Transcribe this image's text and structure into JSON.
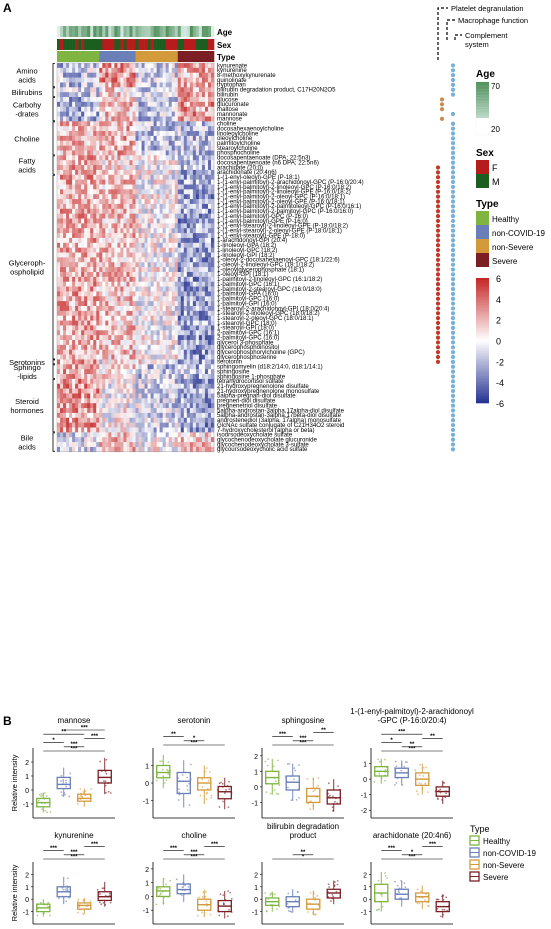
{
  "panel_labels": {
    "a": "A",
    "b": "B"
  },
  "annotation_tracks": [
    "Age",
    "Sex",
    "Type"
  ],
  "pathways": [
    "Platelet degranulation",
    "Macrophage function",
    "Complement system"
  ],
  "pathway_colors": [
    "#77b0d8",
    "#cc8a52",
    "#c0392b"
  ],
  "colors": {
    "heat_high": "#c62828",
    "heat_mid": "#ffffff",
    "heat_low": "#283593",
    "age_high": "#4e8f5a",
    "age_low": "#dcefe9",
    "sex_F": "#b71c1c",
    "sex_M": "#1b5e20",
    "Healthy": "#7fb441",
    "non-COVID-19": "#6a7fb8",
    "non-Severe": "#d29a3a",
    "Severe": "#7b1f24"
  },
  "legend": {
    "age_title": "Age",
    "age_max": "70",
    "age_min": "20",
    "sex_title": "Sex",
    "sex": [
      "F",
      "M"
    ],
    "type_title": "Type",
    "types": [
      "Healthy",
      "non-COVID-19",
      "non-Severe",
      "Severe"
    ],
    "scale_ticks": [
      "6",
      "4",
      "2",
      "0",
      "-2",
      "-4",
      "-6"
    ]
  },
  "groups": [
    {
      "label": "Amino\nacids",
      "rows": [
        "kynurenate",
        "kynurenine",
        "8-methoxykynurenate",
        "quinolinate",
        "tryptophan"
      ],
      "marks": [
        [
          0
        ],
        [
          0
        ],
        [
          0
        ],
        [
          0
        ],
        [
          0
        ]
      ]
    },
    {
      "label": "Bilirubins",
      "rows": [
        "bilirubin degradation product, C17H20N2O5",
        "bilirubin"
      ],
      "marks": [
        [
          0
        ],
        [
          0
        ]
      ]
    },
    {
      "label": "Carbohy\n-drates",
      "rows": [
        "glucose",
        "glucuronate",
        "maltose",
        "mannonate",
        "mannose"
      ],
      "marks": [
        [
          1
        ],
        [
          1
        ],
        [
          1
        ],
        [
          0
        ],
        [
          1
        ]
      ]
    },
    {
      "label": "Choline",
      "rows": [
        "choline",
        "docosahexaenoylcholine",
        "linoleoylcholine",
        "oleoylcholine",
        "palmitoylcholine",
        "stearoylcholine",
        "phosphocholine"
      ],
      "marks": [
        [
          0
        ],
        [
          0
        ],
        [
          0
        ],
        [
          0
        ],
        [
          0
        ],
        [
          0
        ],
        [
          0
        ]
      ]
    },
    {
      "label": "Fatty\nacids",
      "rows": [
        "docosapentaenoate (DPA; 22:5n3)",
        "docosapentaenoate (n6 DPA; 22:5n6)",
        "arachidate (20:0)",
        "arachidonate (20:4n6)"
      ],
      "marks": [
        [
          0
        ],
        [
          0
        ],
        [
          2,
          0
        ],
        [
          2,
          0
        ]
      ]
    },
    {
      "label": "Glyceroph-\nospholipid",
      "rows": [
        "1-(1-enyl-oleoyl)-GPE (P-18:1)",
        "1-(1-enyl-palmitoyl)-2-arachidonoyl-GPC (P-16:0/20:4)",
        "1-(1-enyl-palmitoyl)-2-linoleoyl-GPC (P-16:0/18:2)",
        "1-(1-enyl-palmitoyl)-2-linoleoyl-GPE (P-16:0/18:2)",
        "1-(1-enyl-palmitoyl)-2-oleoyl-GPC (P-16:0/18:1)",
        "1-(1-enyl-palmitoyl)-2-oleoyl-GPE (P-16:0/18:1)",
        "1-(1-enyl-palmitoyl)-2-palmitoleoyl-GPC (P-16:0/16:1)",
        "1-(1-enyl-palmitoyl)-2-palmitoyl-GPC (P-16:0/16:0)",
        "1-(1-enyl-palmitoyl)-GPC (P-16:0)",
        "1-(1-enyl-palmitoyl)-GPE (P-16:0)",
        "1-(1-enyl-stearoyl)-2-linoleoyl-GPE (P-18:0/18:2)",
        "1-(1-enyl-stearoyl)-2-oleoyl-GPE (P-18:0/18:1)",
        "1-(1-enyl-stearoyl)-GPE (P-18:0)",
        "1-arachidonoyl-GPI (20:4)",
        "1-linoleoyl-GPA (18:2)",
        "1-linoleoyl-GPC (18:2)",
        "1-linoleoyl-GPI (18:2)",
        "1-oleoyl-2-docosahexaenoyl-GPC (18:1/22:6)",
        "1-oleoyl-2-linoleoyl-GPC (18:1/18:2)",
        "1-oleoylglycerophosphate (18:1)",
        "1-oleoyl-GPI (18:1)",
        "1-palmitoyl-2-linoleoyl-GPC (16:1/18:2)",
        "1-palmitoyl-GPC (16:1)",
        "1-palmitoyl-2-stearoyl-GPC (16:0/18:0)",
        "1-palmitoyl-GPA (16:0)",
        "1-palmitoyl-GPC (16:0)",
        "1-palmitoyl-GPI (16:0)",
        "1-stearoyl-2-arachidonoyl-GPI (18:0/20:4)",
        "1-stearoyl-2-linoleoyl-GPC (18:0/18:2)",
        "1-stearoyl-2-oleoyl-GPC (18:0/18:1)",
        "1-stearoyl-GPC (18:0)",
        "1-stearoyl-GPI (18:0)",
        "2-palmitoyl-GPC (16:1)",
        "2-palmitoyl-GPC (16:0)",
        "glycerol 3-phosphate",
        "glycerophosphoinositol",
        "glycerophosphorylcholine (GPC)",
        "glycerophosphoserine"
      ],
      "marks": [
        [
          2,
          0
        ],
        [
          2,
          0
        ],
        [
          2,
          0
        ],
        [
          2,
          0
        ],
        [
          2,
          0
        ],
        [
          2,
          0
        ],
        [
          2,
          0
        ],
        [
          2,
          0
        ],
        [
          2,
          0
        ],
        [
          2,
          0
        ],
        [
          2,
          0
        ],
        [
          2,
          0
        ],
        [
          2,
          0
        ],
        [
          2,
          0
        ],
        [
          2,
          0
        ],
        [
          2,
          0
        ],
        [
          2,
          0
        ],
        [
          2,
          0
        ],
        [
          2,
          0
        ],
        [
          2,
          0
        ],
        [
          2,
          0
        ],
        [
          2,
          0
        ],
        [
          2,
          0
        ],
        [
          2,
          0
        ],
        [
          2,
          0
        ],
        [
          2,
          0
        ],
        [
          2,
          0
        ],
        [
          2,
          0
        ],
        [
          2,
          0
        ],
        [
          2,
          0
        ],
        [
          2,
          0
        ],
        [
          2,
          0
        ],
        [
          2,
          0
        ],
        [
          2,
          0
        ],
        [
          2,
          0
        ],
        [
          2,
          0
        ],
        [
          2,
          0
        ],
        [
          2,
          0
        ]
      ]
    },
    {
      "label": "Serotonins",
      "rows": [
        "serotonin"
      ],
      "marks": [
        [
          2,
          0
        ]
      ]
    },
    {
      "label": "Sphingo\n-lipids",
      "rows": [
        "sphingomyelin (d18:2/14:0, d18:1/14:1)",
        "sphingosine",
        "sphingosine 1-phosphate"
      ],
      "marks": [
        [
          0
        ],
        [
          0
        ],
        [
          0
        ]
      ]
    },
    {
      "label": "Steroid\nhormones",
      "rows": [
        "tetrahydrocortisol sulfate",
        "21-hydroxypregnenolone disulfate",
        "21-hydroxypregnenolone monosulfate",
        "5alpha-pregnan-diol disulfate",
        "pregnen-diol disulfate",
        "pregnenetriol disulfate",
        "5alpha-androstan-3alpha,17alpha-diol disulfate",
        "5alpha-androstan-3alpha,17beta-diol disulfate",
        "androstenediol (3alpha, 17alpha) monosulfate",
        "GlcNAc sulfate conjugate of C21H34O2 steroid",
        "7-hydroxycholesterol (alpha or beta)"
      ],
      "marks": [
        [
          0
        ],
        [
          0
        ],
        [
          0
        ],
        [
          0
        ],
        [
          0
        ],
        [
          0
        ],
        [
          0
        ],
        [
          0
        ],
        [
          0
        ],
        [
          0
        ],
        [
          0
        ]
      ]
    },
    {
      "label": "Bile\nacids",
      "rows": [
        "isoursodeoxycholate sulfate",
        "glycochenodeoxycholate glucuronide",
        "glycochenodeoxycholate 3-sulfate",
        "glycoursodeoxycholic acid sulfate"
      ],
      "marks": [
        [
          0
        ],
        [
          0
        ],
        [
          0
        ],
        [
          0
        ]
      ]
    }
  ],
  "chart_data": [
    {
      "type": "heatmap",
      "columns_per_group": {
        "Healthy": 14,
        "non-COVID-19": 12,
        "non-Severe": 14,
        "Severe": 12
      },
      "scale": [
        -6,
        6
      ],
      "note_rows": "rows as listed in groups"
    },
    {
      "type": "box",
      "title": "mannose",
      "ylabel": "Relative intensity",
      "ylim": [
        -2,
        3
      ],
      "yticks": [
        "-1",
        "0",
        "1",
        "2"
      ],
      "groups": [
        "Healthy",
        "non-COVID-19",
        "non-Severe",
        "Severe"
      ],
      "boxes": [
        {
          "q1": -1.2,
          "med": -0.9,
          "q3": -0.6,
          "lo": -1.6,
          "hi": -0.2
        },
        {
          "q1": 0.1,
          "med": 0.4,
          "q3": 0.9,
          "lo": -0.5,
          "hi": 1.6
        },
        {
          "q1": -0.8,
          "med": -0.6,
          "q3": -0.3,
          "lo": -1.2,
          "hi": 0.1
        },
        {
          "q1": 0.5,
          "med": 0.9,
          "q3": 1.4,
          "lo": -0.3,
          "hi": 2.3
        }
      ],
      "sig": [
        "***",
        "***",
        "*",
        "***",
        "**",
        "***"
      ]
    },
    {
      "type": "box",
      "title": "serotonin",
      "ylabel": "",
      "ylim": [
        -2,
        2
      ],
      "yticks": [
        "-1",
        "0",
        "1"
      ],
      "groups": [
        "Healthy",
        "non-COVID-19",
        "non-Severe",
        "Severe"
      ],
      "boxes": [
        {
          "q1": 0.3,
          "med": 0.6,
          "q3": 1.0,
          "lo": -0.3,
          "hi": 1.6
        },
        {
          "q1": -0.6,
          "med": 0.1,
          "q3": 0.6,
          "lo": -1.4,
          "hi": 1.3
        },
        {
          "q1": -0.4,
          "med": 0.0,
          "q3": 0.3,
          "lo": -1.2,
          "hi": 1.0
        },
        {
          "q1": -0.9,
          "med": -0.5,
          "q3": -0.2,
          "lo": -1.5,
          "hi": 0.3
        }
      ],
      "sig": [
        "***",
        "*",
        "**"
      ]
    },
    {
      "type": "box",
      "title": "sphingosine",
      "ylabel": "",
      "ylim": [
        -2,
        2.5
      ],
      "yticks": [
        "-1",
        "0",
        "1",
        "2"
      ],
      "groups": [
        "Healthy",
        "non-COVID-19",
        "non-Severe",
        "Severe"
      ],
      "boxes": [
        {
          "q1": 0.2,
          "med": 0.6,
          "q3": 1.0,
          "lo": -0.5,
          "hi": 1.8
        },
        {
          "q1": -0.2,
          "med": 0.3,
          "q3": 0.7,
          "lo": -0.9,
          "hi": 1.5
        },
        {
          "q1": -1.0,
          "med": -0.6,
          "q3": -0.1,
          "lo": -1.5,
          "hi": 0.6
        },
        {
          "q1": -1.1,
          "med": -0.7,
          "q3": -0.2,
          "lo": -1.6,
          "hi": 0.5
        }
      ],
      "sig": [
        "***",
        "***",
        "***",
        "**"
      ]
    },
    {
      "type": "box",
      "title": "1-(1-enyl-palmitoyl)-2-arachidonoyl\n-GPC (P-16:0/20:4)",
      "ylabel": "",
      "ylim": [
        -2.5,
        2
      ],
      "yticks": [
        "-2",
        "-1",
        "0",
        "1"
      ],
      "groups": [
        "Healthy",
        "non-COVID-19",
        "non-Severe",
        "Severe"
      ],
      "boxes": [
        {
          "q1": 0.2,
          "med": 0.5,
          "q3": 0.8,
          "lo": -0.3,
          "hi": 1.3
        },
        {
          "q1": 0.1,
          "med": 0.4,
          "q3": 0.7,
          "lo": -0.4,
          "hi": 1.2
        },
        {
          "q1": -0.4,
          "med": 0.0,
          "q3": 0.4,
          "lo": -1.0,
          "hi": 1.0
        },
        {
          "q1": -1.1,
          "med": -0.8,
          "q3": -0.5,
          "lo": -1.6,
          "hi": -0.1
        }
      ],
      "sig": [
        "***",
        "**",
        "*",
        "**",
        "***"
      ]
    },
    {
      "type": "box",
      "title": "kynurenine",
      "ylabel": "Relative intensity",
      "ylim": [
        -2,
        3
      ],
      "yticks": [
        "-1",
        "0",
        "1",
        "2"
      ],
      "groups": [
        "Healthy",
        "non-COVID-19",
        "non-Severe",
        "Severe"
      ],
      "boxes": [
        {
          "q1": -1.0,
          "med": -0.7,
          "q3": -0.4,
          "lo": -1.4,
          "hi": 0.0
        },
        {
          "q1": 0.2,
          "med": 0.6,
          "q3": 1.0,
          "lo": -0.4,
          "hi": 1.8
        },
        {
          "q1": -0.8,
          "med": -0.5,
          "q3": -0.3,
          "lo": -1.2,
          "hi": 0.1
        },
        {
          "q1": -0.1,
          "med": 0.2,
          "q3": 0.6,
          "lo": -0.6,
          "hi": 1.4
        }
      ],
      "sig": [
        "***",
        "***",
        "***",
        "***"
      ]
    },
    {
      "type": "box",
      "title": "choline",
      "ylabel": "",
      "ylim": [
        -2,
        2.5
      ],
      "yticks": [
        "-1",
        "0",
        "1",
        "2"
      ],
      "groups": [
        "Healthy",
        "non-COVID-19",
        "non-Severe",
        "Severe"
      ],
      "boxes": [
        {
          "q1": 0.0,
          "med": 0.4,
          "q3": 0.7,
          "lo": -0.6,
          "hi": 1.3
        },
        {
          "q1": 0.2,
          "med": 0.5,
          "q3": 0.9,
          "lo": -0.4,
          "hi": 1.6
        },
        {
          "q1": -1.0,
          "med": -0.6,
          "q3": -0.2,
          "lo": -1.5,
          "hi": 0.5
        },
        {
          "q1": -1.1,
          "med": -0.7,
          "q3": -0.3,
          "lo": -1.6,
          "hi": 0.4
        }
      ],
      "sig": [
        "***",
        "***",
        "***",
        "***"
      ]
    },
    {
      "type": "box",
      "title": "bilirubin degradation\nproduct",
      "ylabel": "",
      "ylim": [
        -2,
        3
      ],
      "yticks": [
        "-1",
        "0",
        "1",
        "2"
      ],
      "groups": [
        "Healthy",
        "non-COVID-19",
        "non-Severe",
        "Severe"
      ],
      "boxes": [
        {
          "q1": -0.5,
          "med": -0.2,
          "q3": 0.1,
          "lo": -1.0,
          "hi": 0.6
        },
        {
          "q1": -0.6,
          "med": -0.2,
          "q3": 0.2,
          "lo": -1.1,
          "hi": 0.8
        },
        {
          "q1": -0.8,
          "med": -0.4,
          "q3": 0.0,
          "lo": -1.3,
          "hi": 0.7
        },
        {
          "q1": 0.1,
          "med": 0.5,
          "q3": 0.8,
          "lo": -0.4,
          "hi": 1.5
        }
      ],
      "sig": [
        "*",
        "**"
      ]
    },
    {
      "type": "box",
      "title": "arachidonate (20:4n6)",
      "ylabel": "",
      "ylim": [
        -2,
        3
      ],
      "yticks": [
        "-1",
        "0",
        "1",
        "2"
      ],
      "groups": [
        "Healthy",
        "non-COVID-19",
        "non-Severe",
        "Severe"
      ],
      "boxes": [
        {
          "q1": -0.2,
          "med": 0.5,
          "q3": 1.2,
          "lo": -1.0,
          "hi": 2.2
        },
        {
          "q1": 0.0,
          "med": 0.4,
          "q3": 0.8,
          "lo": -0.6,
          "hi": 1.5
        },
        {
          "q1": -0.2,
          "med": 0.2,
          "q3": 0.5,
          "lo": -0.8,
          "hi": 1.1
        },
        {
          "q1": -1.0,
          "med": -0.6,
          "q3": -0.2,
          "lo": -1.5,
          "hi": 0.4
        }
      ],
      "sig": [
        "***",
        "*",
        "***",
        "***"
      ]
    }
  ],
  "type_legend_title": "Type"
}
